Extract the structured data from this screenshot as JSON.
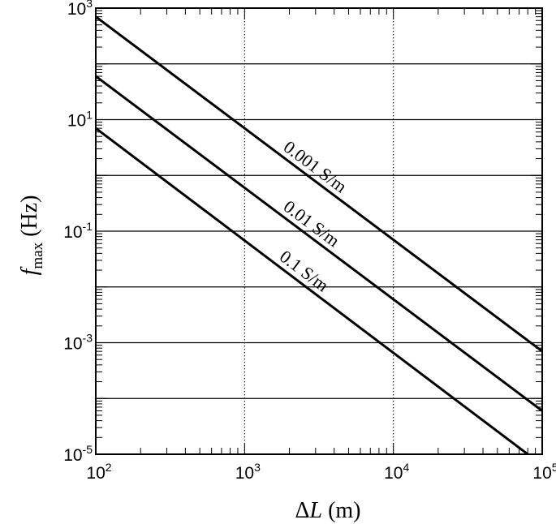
{
  "chart_data": {
    "type": "line",
    "x_scale": "log",
    "y_scale": "log",
    "xlim": [
      100,
      100000
    ],
    "ylim": [
      1e-05,
      1000
    ],
    "x_ticks": [
      {
        "value": 100,
        "base": "10",
        "exp": "2"
      },
      {
        "value": 1000,
        "base": "10",
        "exp": "3"
      },
      {
        "value": 10000,
        "base": "10",
        "exp": "4"
      },
      {
        "value": 100000,
        "base": "10",
        "exp": "5"
      }
    ],
    "y_ticks": [
      {
        "value": 1000,
        "base": "10",
        "exp": "3"
      },
      {
        "value": 10,
        "base": "10",
        "exp": "1"
      },
      {
        "value": 0.1,
        "base": "10",
        "exp": "-1"
      },
      {
        "value": 0.001,
        "base": "10",
        "exp": "-3"
      },
      {
        "value": 1e-05,
        "base": "10",
        "exp": "-5"
      }
    ],
    "xlabel": {
      "symbol": "ΔL",
      "italic_part": "L",
      "prefix": "Δ",
      "unit": " (m)"
    },
    "ylabel": {
      "symbol": "f",
      "subscript": "max",
      "unit": " (Hz)"
    },
    "grid": {
      "y_major": "solid",
      "x_major": "dotted"
    },
    "series": [
      {
        "name": "0.001 S/m",
        "x": [
          100,
          100000
        ],
        "y": [
          700,
          0.0007
        ]
      },
      {
        "name": "0.01 S/m",
        "x": [
          100,
          100000
        ],
        "y": [
          60,
          6e-05
        ]
      },
      {
        "name": "0.1 S/m",
        "x": [
          100,
          80000
        ],
        "y": [
          7,
          1e-05
        ]
      }
    ]
  }
}
